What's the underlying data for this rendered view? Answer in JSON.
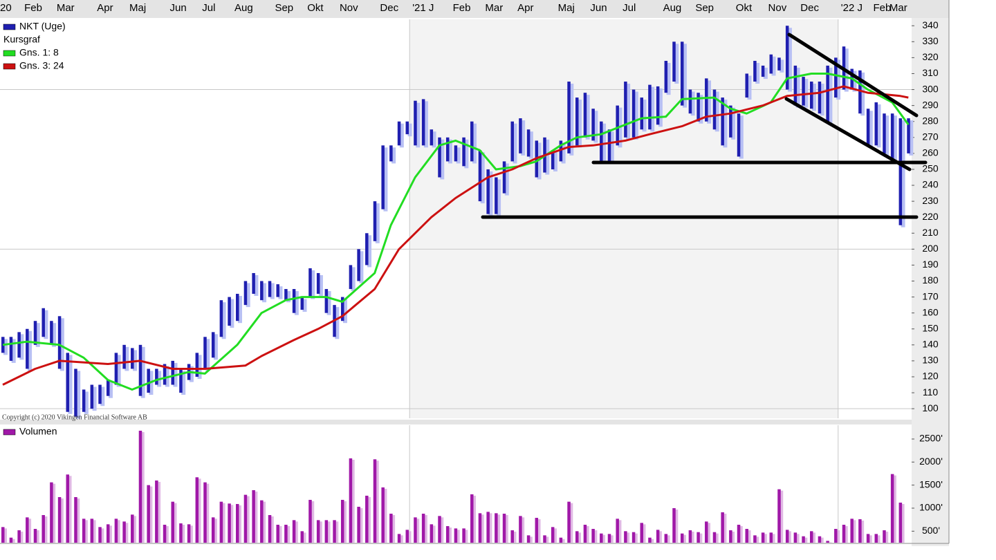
{
  "chart_data": [
    {
      "type": "stock",
      "categories": [
        "20",
        null,
        null,
        "Feb",
        null,
        null,
        null,
        "Mar",
        null,
        null,
        null,
        null,
        "Apr",
        null,
        null,
        null,
        "Maj",
        null,
        null,
        null,
        null,
        "Jun",
        null,
        null,
        null,
        "Jul",
        null,
        null,
        null,
        "Aug",
        null,
        null,
        null,
        null,
        "Sep",
        null,
        null,
        null,
        "Okt",
        null,
        null,
        null,
        "Nov",
        null,
        null,
        null,
        null,
        "Dec",
        null,
        null,
        null,
        "'21 J",
        null,
        null,
        null,
        null,
        "Feb",
        null,
        null,
        null,
        "Mar",
        null,
        null,
        null,
        "Apr",
        null,
        null,
        null,
        null,
        "Maj",
        null,
        null,
        null,
        "Jun",
        null,
        null,
        null,
        "Jul",
        null,
        null,
        null,
        null,
        "Aug",
        null,
        null,
        null,
        "Sep",
        null,
        null,
        null,
        null,
        "Okt",
        null,
        null,
        null,
        "Nov",
        null,
        null,
        null,
        "Dec",
        null,
        null,
        null,
        null,
        "'22 J",
        null,
        null,
        null,
        "Feb",
        null,
        "Mar",
        null,
        null
      ],
      "ylim": [
        94,
        344
      ],
      "yticks": [
        100,
        110,
        120,
        130,
        140,
        150,
        160,
        170,
        180,
        190,
        200,
        210,
        220,
        230,
        240,
        250,
        260,
        270,
        280,
        290,
        300,
        310,
        320,
        330,
        340
      ],
      "legend_note": "Kursgraf",
      "copyright": "Copyright (c) 2020 Vikingen Financial Software AB",
      "series": [
        {
          "name": "NKT (Uge)",
          "type": "range",
          "color": "#1f1fb0",
          "high": [
            145,
            145,
            148,
            150,
            155,
            163,
            155,
            158,
            135,
            125,
            112,
            115,
            115,
            118,
            135,
            140,
            138,
            140,
            125,
            125,
            128,
            130,
            125,
            128,
            135,
            145,
            148,
            168,
            170,
            172,
            180,
            185,
            180,
            180,
            178,
            175,
            175,
            170,
            188,
            185,
            175,
            165,
            170,
            190,
            200,
            210,
            230,
            265,
            265,
            280,
            280,
            293,
            294,
            275,
            270,
            270,
            265,
            270,
            280,
            262,
            250,
            245,
            255,
            280,
            282,
            275,
            268,
            270,
            262,
            268,
            305,
            295,
            298,
            288,
            280,
            275,
            290,
            305,
            300,
            295,
            303,
            302,
            318,
            330,
            330,
            300,
            298,
            307,
            300,
            295,
            290,
            285,
            310,
            318,
            315,
            322,
            320,
            340,
            315,
            308,
            305,
            305,
            315,
            320,
            327,
            313,
            312,
            288,
            292,
            285,
            285,
            282,
            282
          ],
          "low": [
            135,
            130,
            132,
            125,
            140,
            145,
            140,
            125,
            98,
            95,
            98,
            100,
            103,
            108,
            115,
            125,
            125,
            108,
            110,
            115,
            115,
            115,
            110,
            118,
            120,
            125,
            132,
            145,
            152,
            155,
            165,
            172,
            168,
            170,
            170,
            168,
            160,
            162,
            170,
            172,
            160,
            145,
            155,
            175,
            180,
            190,
            205,
            225,
            255,
            265,
            272,
            265,
            265,
            265,
            245,
            255,
            255,
            252,
            255,
            230,
            222,
            222,
            235,
            255,
            260,
            258,
            245,
            248,
            250,
            255,
            260,
            265,
            270,
            268,
            255,
            255,
            265,
            270,
            270,
            275,
            275,
            278,
            298,
            305,
            290,
            285,
            280,
            280,
            275,
            265,
            270,
            258,
            295,
            305,
            308,
            310,
            312,
            300,
            290,
            290,
            288,
            285,
            280,
            295,
            300,
            300,
            285,
            265,
            265,
            260,
            255,
            215,
            260
          ]
        },
        {
          "name": "Gns. 1: 8",
          "type": "line",
          "color": "#22dd22",
          "x": [
            0,
            3,
            7,
            10,
            13,
            16,
            19,
            23,
            25,
            29,
            32,
            35,
            37,
            40,
            42,
            46,
            48,
            51,
            54,
            56,
            59,
            61,
            64,
            66,
            69,
            71,
            74,
            77,
            79,
            82,
            84,
            88,
            90,
            92,
            95,
            97,
            100,
            102,
            105,
            107,
            110,
            112
          ],
          "values": [
            140,
            142,
            140,
            132,
            118,
            112,
            118,
            123,
            122,
            140,
            160,
            168,
            170,
            170,
            167,
            185,
            215,
            245,
            265,
            268,
            262,
            250,
            252,
            255,
            265,
            270,
            272,
            278,
            282,
            283,
            294,
            295,
            288,
            285,
            292,
            307,
            310,
            310,
            307,
            300,
            292,
            278
          ]
        },
        {
          "name": "Gns. 3: 24",
          "type": "line",
          "color": "#cc1111",
          "x": [
            0,
            4,
            7,
            13,
            17,
            21,
            25,
            30,
            32,
            36,
            39,
            42,
            46,
            49,
            53,
            56,
            60,
            63,
            66,
            70,
            73,
            77,
            80,
            84,
            87,
            90,
            94,
            97,
            101,
            104,
            107,
            111,
            112
          ],
          "values": [
            115,
            125,
            130,
            128,
            130,
            125,
            125,
            127,
            133,
            143,
            150,
            158,
            175,
            200,
            220,
            232,
            245,
            250,
            257,
            264,
            265,
            268,
            272,
            277,
            283,
            285,
            290,
            296,
            298,
            302,
            298,
            296,
            295
          ]
        }
      ]
    },
    {
      "type": "bar",
      "ylim": [
        250,
        2800
      ],
      "yticks": [
        {
          "value": 500,
          "label": "500'"
        },
        {
          "value": 1000,
          "label": "1000'"
        },
        {
          "value": 1500,
          "label": "1500'"
        },
        {
          "value": 2000,
          "label": "2000'"
        },
        {
          "value": 2500,
          "label": "2500'"
        }
      ],
      "series": [
        {
          "name": "Volumen",
          "color": "#a018a8",
          "values": [
            590,
            360,
            520,
            800,
            550,
            850,
            1560,
            1240,
            1730,
            1240,
            770,
            770,
            590,
            650,
            770,
            710,
            860,
            2680,
            1500,
            1600,
            640,
            1140,
            670,
            650,
            1670,
            1560,
            800,
            1140,
            1100,
            1090,
            1290,
            1390,
            1170,
            850,
            640,
            640,
            740,
            500,
            1180,
            740,
            740,
            740,
            1180,
            2080,
            1030,
            1270,
            2060,
            1450,
            880,
            440,
            530,
            800,
            880,
            650,
            830,
            610,
            560,
            560,
            1300,
            890,
            920,
            890,
            880,
            520,
            830,
            410,
            790,
            410,
            590,
            360,
            1140,
            500,
            640,
            550,
            450,
            440,
            770,
            500,
            480,
            680,
            360,
            530,
            440,
            1000,
            450,
            520,
            480,
            710,
            480,
            910,
            520,
            640,
            550,
            410,
            470,
            470,
            1410,
            530,
            470,
            390,
            500,
            390,
            290,
            550,
            640,
            770,
            760,
            440,
            440,
            520,
            1740,
            1120
          ]
        }
      ]
    }
  ]
}
